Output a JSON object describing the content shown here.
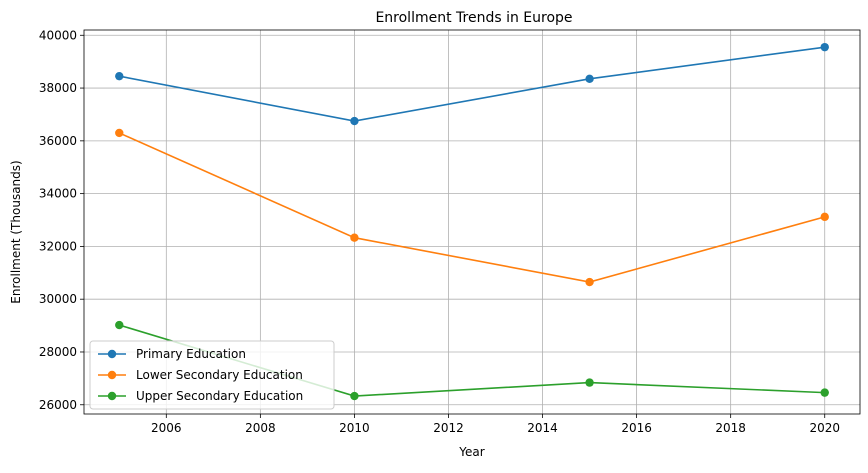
{
  "chart_data": {
    "type": "line",
    "title": "Enrollment Trends in Europe",
    "xlabel": "Year",
    "ylabel": "Enrollment (Thousands)",
    "x": [
      2005,
      2010,
      2015,
      2020
    ],
    "xlim": [
      2004.25,
      2020.75
    ],
    "ylim": [
      25650,
      40200
    ],
    "xticks": [
      2006,
      2008,
      2010,
      2012,
      2014,
      2016,
      2018,
      2020
    ],
    "yticks": [
      26000,
      28000,
      30000,
      32000,
      34000,
      36000,
      38000,
      40000
    ],
    "grid": true,
    "legend_position": "lower-left",
    "series": [
      {
        "name": "Primary Education",
        "color": "#1f77b4",
        "values": [
          38450,
          36750,
          38350,
          39550
        ]
      },
      {
        "name": "Lower Secondary Education",
        "color": "#ff7f0e",
        "values": [
          36300,
          32330,
          30650,
          33120
        ]
      },
      {
        "name": "Upper Secondary Education",
        "color": "#2ca02c",
        "values": [
          29020,
          26330,
          26840,
          26460
        ]
      }
    ]
  }
}
